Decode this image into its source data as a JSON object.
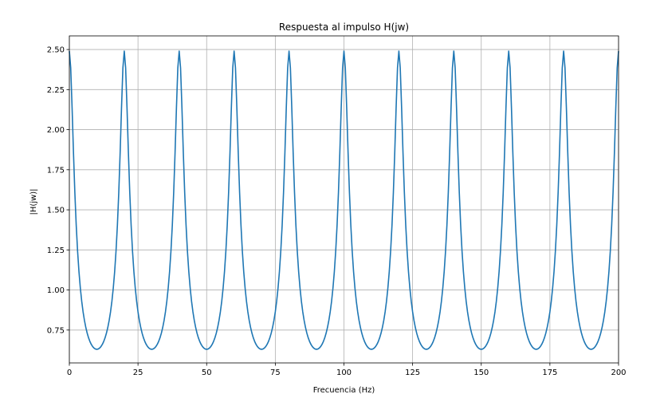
{
  "chart_data": {
    "type": "line",
    "title": "Respuesta al impulso H(jw)",
    "xlabel": "Frecuencia (Hz)",
    "ylabel": "|H(jw)|",
    "xlim": [
      0,
      200
    ],
    "ylim": [
      0.545,
      2.585
    ],
    "xticks": [
      0,
      25,
      50,
      75,
      100,
      125,
      150,
      175,
      200
    ],
    "xtick_labels": [
      "0",
      "25",
      "50",
      "75",
      "100",
      "125",
      "150",
      "175",
      "200"
    ],
    "yticks": [
      0.75,
      1.0,
      1.25,
      1.5,
      1.75,
      2.0,
      2.25,
      2.5
    ],
    "ytick_labels": [
      "0.75",
      "1.00",
      "1.25",
      "1.50",
      "1.75",
      "2.00",
      "2.25",
      "2.50"
    ],
    "grid": true,
    "series": [
      {
        "color": "#1f77b4",
        "period_hz": 20,
        "max_value": 2.49,
        "min_value": 0.63,
        "peaks_at_hz": [
          0,
          20,
          40,
          60,
          80,
          100,
          120,
          140,
          160,
          180,
          200
        ],
        "minima_at_hz": [
          10,
          30,
          50,
          70,
          90,
          110,
          130,
          150,
          170,
          190
        ]
      }
    ]
  }
}
